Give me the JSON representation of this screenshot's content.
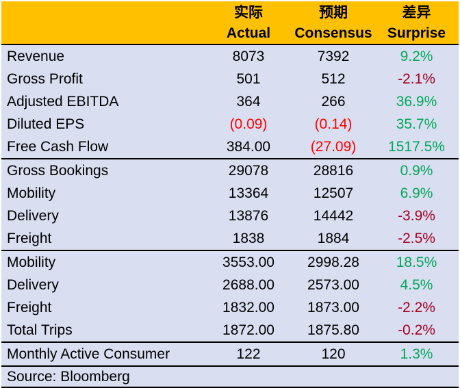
{
  "chart_data": {
    "type": "table",
    "header": {
      "actual_cn": "实际",
      "actual_en": "Actual",
      "consensus_cn": "预期",
      "consensus_en": "Consensus",
      "surprise_cn": "差异",
      "surprise_en": "Surprise"
    },
    "sections": [
      {
        "rows": [
          {
            "label": "Revenue",
            "actual": "8073",
            "consensus": "7392",
            "surprise": "9.2%",
            "actual_color": "black",
            "consensus_color": "black",
            "surprise_color": "green"
          },
          {
            "label": "Gross Profit",
            "actual": "501",
            "consensus": "512",
            "surprise": "-2.1%",
            "actual_color": "black",
            "consensus_color": "black",
            "surprise_color": "darkred"
          },
          {
            "label": "Adjusted EBITDA",
            "actual": "364",
            "consensus": "266",
            "surprise": "36.9%",
            "actual_color": "black",
            "consensus_color": "black",
            "surprise_color": "green"
          },
          {
            "label": "Diluted EPS",
            "actual": "(0.09)",
            "consensus": "(0.14)",
            "surprise": "35.7%",
            "actual_color": "red",
            "consensus_color": "red",
            "surprise_color": "green"
          },
          {
            "label": "Free Cash Flow",
            "actual": "384.00",
            "consensus": "(27.09)",
            "surprise": "1517.5%",
            "actual_color": "black",
            "consensus_color": "red",
            "surprise_color": "green"
          }
        ]
      },
      {
        "rows": [
          {
            "label": "Gross Bookings",
            "actual": "29078",
            "consensus": "28816",
            "surprise": "0.9%",
            "actual_color": "black",
            "consensus_color": "black",
            "surprise_color": "green"
          },
          {
            "label": "Mobility",
            "actual": "13364",
            "consensus": "12507",
            "surprise": "6.9%",
            "actual_color": "black",
            "consensus_color": "black",
            "surprise_color": "green"
          },
          {
            "label": "Delivery",
            "actual": "13876",
            "consensus": "14442",
            "surprise": "-3.9%",
            "actual_color": "black",
            "consensus_color": "black",
            "surprise_color": "darkred"
          },
          {
            "label": "Freight",
            "actual": "1838",
            "consensus": "1884",
            "surprise": "-2.5%",
            "actual_color": "black",
            "consensus_color": "black",
            "surprise_color": "darkred"
          }
        ]
      },
      {
        "rows": [
          {
            "label": "Mobility",
            "actual": "3553.00",
            "consensus": "2998.28",
            "surprise": "18.5%",
            "actual_color": "black",
            "consensus_color": "black",
            "surprise_color": "green"
          },
          {
            "label": "Delivery",
            "actual": "2688.00",
            "consensus": "2573.00",
            "surprise": "4.5%",
            "actual_color": "black",
            "consensus_color": "black",
            "surprise_color": "green"
          },
          {
            "label": "Freight",
            "actual": "1832.00",
            "consensus": "1873.00",
            "surprise": "-2.2%",
            "actual_color": "black",
            "consensus_color": "black",
            "surprise_color": "darkred"
          },
          {
            "label": "Total Trips",
            "actual": "1872.00",
            "consensus": "1875.80",
            "surprise": "-0.2%",
            "actual_color": "black",
            "consensus_color": "black",
            "surprise_color": "darkred"
          }
        ]
      },
      {
        "rows": [
          {
            "label": "Monthly Active Consumer",
            "actual": "122",
            "consensus": "120",
            "surprise": "1.3%",
            "actual_color": "black",
            "consensus_color": "black",
            "surprise_color": "green"
          }
        ]
      }
    ],
    "source": "Source: Bloomberg"
  },
  "colors": {
    "header_bg": "#FFC000",
    "row_bg": "#D9DEF0",
    "positive": "#00A75A",
    "negative_pct": "#A50021",
    "negative_value": "#FF0000",
    "border": "#000000"
  }
}
